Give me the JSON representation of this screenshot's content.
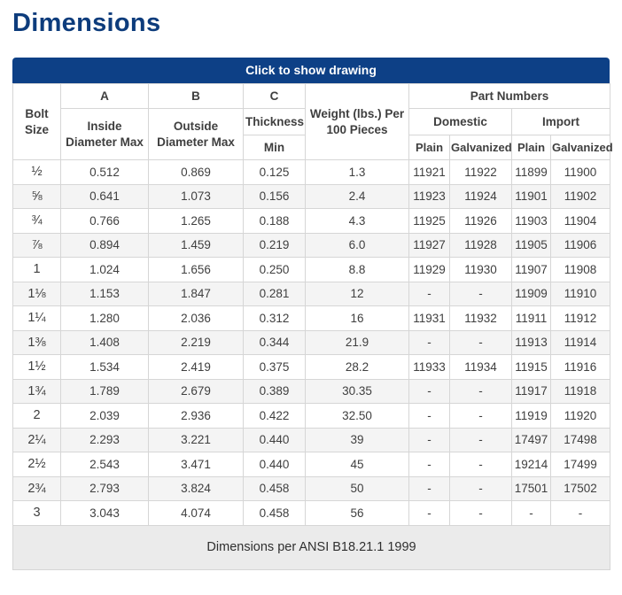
{
  "page": {
    "title": "Dimensions"
  },
  "colors": {
    "accent": "#0d4086",
    "title": "#0d3c7c",
    "border": "#d6d6d6",
    "stripe": "#f4f4f4",
    "footer": "#ebebeb",
    "text": "#3f3f3f"
  },
  "table": {
    "toggle_label": "Click to show drawing",
    "header": {
      "bolt_size": "Bolt Size",
      "col_a_letter": "A",
      "col_a_sub": "Inside Diameter Max",
      "col_b_letter": "B",
      "col_b_sub": "Outside Diameter Max",
      "col_c_letter": "C",
      "col_c_thickness": "Thickness",
      "col_c_min": "Min",
      "weight": "Weight (lbs.) Per 100 Pieces",
      "part_numbers": "Part Numbers",
      "domestic": "Domestic",
      "import": "Import",
      "plain_domestic": "Plain",
      "galvanized_domestic": "Galvanized",
      "plain_import": "Plain",
      "galvanized_import": "Galvanized"
    },
    "rows": [
      [
        "½",
        "0.512",
        "0.869",
        "0.125",
        "1.3",
        "11921",
        "11922",
        "11899",
        "11900"
      ],
      [
        "⅝",
        "0.641",
        "1.073",
        "0.156",
        "2.4",
        "11923",
        "11924",
        "11901",
        "11902"
      ],
      [
        "¾",
        "0.766",
        "1.265",
        "0.188",
        "4.3",
        "11925",
        "11926",
        "11903",
        "11904"
      ],
      [
        "⅞",
        "0.894",
        "1.459",
        "0.219",
        "6.0",
        "11927",
        "11928",
        "11905",
        "11906"
      ],
      [
        "1",
        "1.024",
        "1.656",
        "0.250",
        "8.8",
        "11929",
        "11930",
        "11907",
        "11908"
      ],
      [
        "1⅛",
        "1.153",
        "1.847",
        "0.281",
        "12",
        "-",
        "-",
        "11909",
        "11910"
      ],
      [
        "1¼",
        "1.280",
        "2.036",
        "0.312",
        "16",
        "11931",
        "11932",
        "11911",
        "11912"
      ],
      [
        "1⅜",
        "1.408",
        "2.219",
        "0.344",
        "21.9",
        "-",
        "-",
        "11913",
        "11914"
      ],
      [
        "1½",
        "1.534",
        "2.419",
        "0.375",
        "28.2",
        "11933",
        "11934",
        "11915",
        "11916"
      ],
      [
        "1¾",
        "1.789",
        "2.679",
        "0.389",
        "30.35",
        "-",
        "-",
        "11917",
        "11918"
      ],
      [
        "2",
        "2.039",
        "2.936",
        "0.422",
        "32.50",
        "-",
        "-",
        "11919",
        "11920"
      ],
      [
        "2¼",
        "2.293",
        "3.221",
        "0.440",
        "39",
        "-",
        "-",
        "17497",
        "17498"
      ],
      [
        "2½",
        "2.543",
        "3.471",
        "0.440",
        "45",
        "-",
        "-",
        "19214",
        "17499"
      ],
      [
        "2¾",
        "2.793",
        "3.824",
        "0.458",
        "50",
        "-",
        "-",
        "17501",
        "17502"
      ],
      [
        "3",
        "3.043",
        "4.074",
        "0.458",
        "56",
        "-",
        "-",
        "-",
        "-"
      ]
    ],
    "footnote": "Dimensions per ANSI B18.21.1 1999"
  }
}
